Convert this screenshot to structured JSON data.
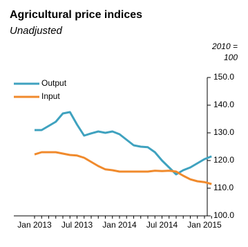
{
  "chart_data": {
    "type": "line",
    "title": "Agricultural  price indices",
    "subtitle": "Unadjusted",
    "y_axis_label": [
      "2010 =",
      "100"
    ],
    "categories": [
      "Jan 2013",
      null,
      null,
      null,
      null,
      null,
      "Jul 2013",
      null,
      null,
      null,
      null,
      null,
      "Jan 2014",
      null,
      null,
      null,
      null,
      null,
      "Jul 2014",
      null,
      null,
      null,
      null,
      null,
      "Jan 2015",
      null
    ],
    "series": [
      {
        "name": "Output",
        "color": "#3fa2bf",
        "values": [
          131,
          131,
          132.5,
          134,
          137,
          137.5,
          133,
          129,
          129.8,
          130.5,
          130,
          130.5,
          129.5,
          127.5,
          125.5,
          125,
          124.8,
          123,
          120,
          117.5,
          115,
          116.5,
          117.5,
          119,
          120.5,
          121.5
        ]
      },
      {
        "name": "Input",
        "color": "#f08a2c",
        "values": [
          122.2,
          123,
          123,
          123,
          122.5,
          122,
          121.8,
          121,
          119.5,
          118,
          116.8,
          116.5,
          116,
          116,
          116,
          116,
          116,
          116.3,
          116.2,
          116.3,
          116,
          114.5,
          113.2,
          112.5,
          112.2,
          111.5
        ]
      }
    ],
    "ylim": [
      100,
      150
    ],
    "yticks": [
      {
        "value": 100,
        "label": "100.0"
      },
      {
        "value": 110,
        "label": "110.0"
      },
      {
        "value": 120,
        "label": "120.0"
      },
      {
        "value": 130,
        "label": "130.0"
      },
      {
        "value": 140,
        "label": "140.0"
      },
      {
        "value": 150,
        "label": "150.0"
      }
    ],
    "y_axis_side": "right",
    "legend": "top-left",
    "grid": false
  }
}
